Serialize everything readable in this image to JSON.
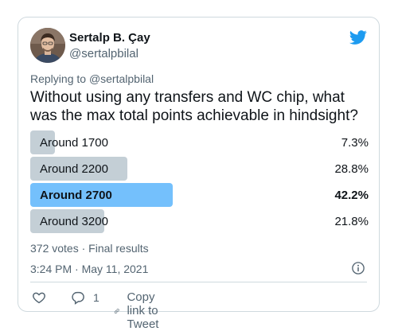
{
  "author": {
    "name": "Sertalp B. Çay",
    "handle": "@sertalpbilal"
  },
  "replying": {
    "prefix": "Replying to ",
    "mention": "@sertalpbilal"
  },
  "tweet_text": "Without using any transfers and WC chip, what was the max total points achievable in hindsight?",
  "poll": {
    "options": [
      {
        "label": "Around 1700",
        "percent_text": "7.3%",
        "percent": 7.3,
        "winner": false
      },
      {
        "label": "Around 2200",
        "percent_text": "28.8%",
        "percent": 28.8,
        "winner": false
      },
      {
        "label": "Around 2700",
        "percent_text": "42.2%",
        "percent": 42.2,
        "winner": true
      },
      {
        "label": "Around 3200",
        "percent_text": "21.8%",
        "percent": 21.8,
        "winner": false
      }
    ],
    "results_text": "372 votes · Final results"
  },
  "timestamp": "3:24 PM · May 11, 2021",
  "actions": {
    "reply_count": "1",
    "copy_link_label": "Copy link to Tweet"
  },
  "colors": {
    "brand": "#1d9bf0",
    "winner_bar": "#74c0fc",
    "bar": "#c4cfd6",
    "muted_text": "#536471"
  },
  "icons": {
    "brand": "twitter-bird-icon",
    "info": "info-icon",
    "like": "heart-icon",
    "reply": "reply-bubble-icon",
    "copy": "link-icon"
  }
}
